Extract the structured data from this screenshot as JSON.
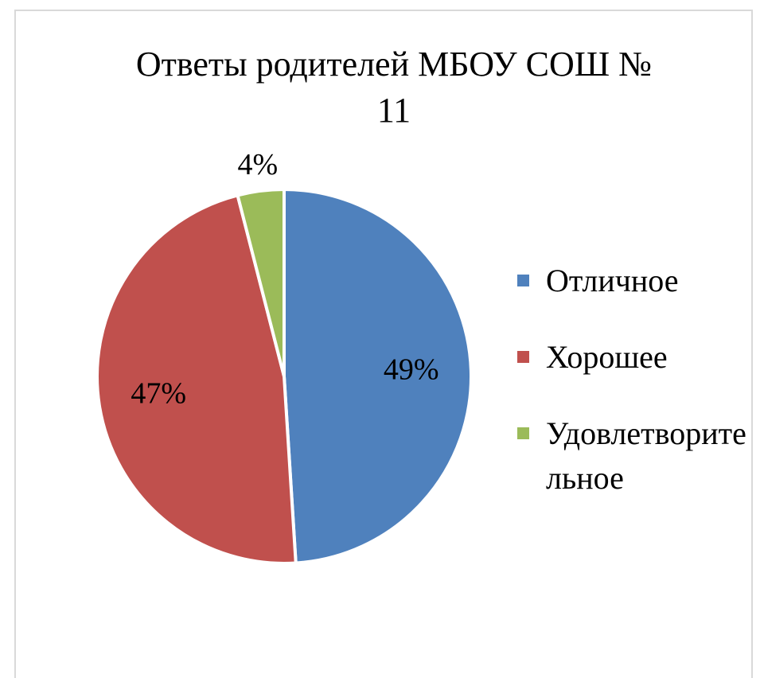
{
  "chart_data": {
    "type": "pie",
    "title": "Ответы родителей МБОУ СОШ № 11",
    "categories": [
      "Отличное",
      "Хорошее",
      "Удовлетворительное"
    ],
    "values": [
      49,
      47,
      4
    ],
    "value_labels": [
      "49%",
      "47%",
      "4%"
    ],
    "colors": [
      "#4f81bd",
      "#c0504d",
      "#9bbb59"
    ],
    "legend": "right"
  }
}
